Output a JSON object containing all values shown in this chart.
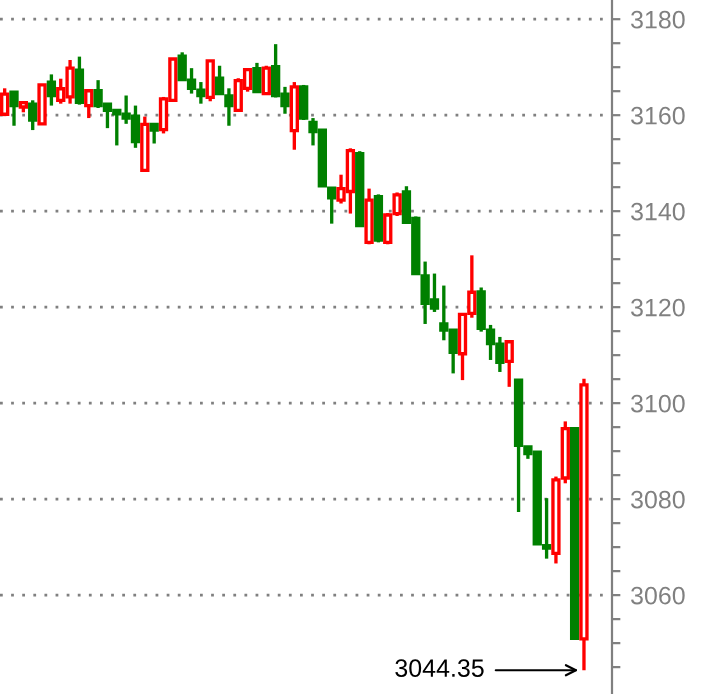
{
  "chart_data": {
    "type": "candlestick",
    "categories": [
      null,
      null,
      null,
      null,
      null,
      null,
      null,
      null,
      null,
      null,
      null,
      null,
      null,
      null,
      null,
      null,
      null,
      null,
      null,
      null,
      null,
      null,
      null,
      null,
      null,
      null,
      null,
      null,
      null,
      null,
      null,
      null,
      null,
      null,
      null,
      null,
      null,
      null,
      null,
      null,
      null,
      null,
      null,
      null,
      null,
      null,
      null,
      null,
      null,
      null,
      null,
      null,
      null,
      null,
      null,
      null,
      null,
      null,
      null,
      null,
      null,
      null,
      null
    ],
    "ohlc": [
      [
        3160.2,
        3165.6,
        3159.8,
        3164.4
      ],
      [
        3164.8,
        3164.8,
        3157.8,
        3162.0
      ],
      [
        3161.7,
        3162.6,
        3160.6,
        3162.6
      ],
      [
        3162.3,
        3163.1,
        3156.9,
        3159.0
      ],
      [
        3158.2,
        3166.3,
        3158.2,
        3166.3
      ],
      [
        3166.9,
        3168.5,
        3162.0,
        3164.1
      ],
      [
        3163.1,
        3167.6,
        3162.4,
        3165.5
      ],
      [
        3163.8,
        3171.5,
        3162.4,
        3169.8
      ],
      [
        3169.4,
        3172.2,
        3162.2,
        3162.7
      ],
      [
        3162.0,
        3165.1,
        3159.4,
        3165.1
      ],
      [
        3165.1,
        3167.3,
        3161.5,
        3162.0
      ],
      [
        3162.3,
        3162.3,
        3157.3,
        3161.0
      ],
      [
        3161.0,
        3161.0,
        3153.7,
        3160.3
      ],
      [
        3160.2,
        3164.1,
        3158.2,
        3159.4
      ],
      [
        3159.8,
        3162.0,
        3153.2,
        3154.5
      ],
      [
        3148.5,
        3159.7,
        3148.2,
        3158.1
      ],
      [
        3158.1,
        3158.1,
        3154.1,
        3156.9
      ],
      [
        3157.0,
        3163.8,
        3156.2,
        3163.4
      ],
      [
        3163.1,
        3171.7,
        3162.8,
        3171.7
      ],
      [
        3172.3,
        3173.1,
        3167.4,
        3167.4
      ],
      [
        3167.3,
        3169.8,
        3164.5,
        3165.6
      ],
      [
        3165.2,
        3166.9,
        3162.4,
        3164.1
      ],
      [
        3163.7,
        3171.5,
        3162.9,
        3171.3
      ],
      [
        3167.7,
        3170.3,
        3164.2,
        3164.5
      ],
      [
        3164.0,
        3165.6,
        3157.8,
        3162.0
      ],
      [
        3161.0,
        3167.7,
        3160.8,
        3167.2
      ],
      [
        3165.6,
        3169.8,
        3164.9,
        3169.5
      ],
      [
        3169.7,
        3170.9,
        3164.9,
        3164.9
      ],
      [
        3164.5,
        3170.3,
        3164.2,
        3169.8
      ],
      [
        3170.1,
        3174.8,
        3163.7,
        3164.1
      ],
      [
        3164.4,
        3165.9,
        3160.3,
        3162.0
      ],
      [
        3156.8,
        3166.9,
        3152.8,
        3165.9
      ],
      [
        3165.9,
        3166.3,
        3159.0,
        3159.4
      ],
      [
        3158.5,
        3159.4,
        3153.7,
        3156.6
      ],
      [
        3156.9,
        3156.9,
        3145.3,
        3145.3
      ],
      [
        3144.8,
        3144.8,
        3137.4,
        3142.8
      ],
      [
        3142.3,
        3147.6,
        3141.6,
        3144.7
      ],
      [
        3144.1,
        3153.1,
        3139.5,
        3152.6
      ],
      [
        3152.0,
        3152.5,
        3137.0,
        3137.0
      ],
      [
        3133.5,
        3144.7,
        3133.1,
        3142.3
      ],
      [
        3143.0,
        3143.5,
        3133.5,
        3134.0
      ],
      [
        3133.5,
        3139.6,
        3133.1,
        3139.2
      ],
      [
        3139.5,
        3143.9,
        3139.0,
        3143.4
      ],
      [
        3144.0,
        3145.2,
        3137.7,
        3137.7
      ],
      [
        3138.5,
        3138.9,
        3127.0,
        3127.0
      ],
      [
        3126.5,
        3129.5,
        3116.5,
        3120.8
      ],
      [
        3121.5,
        3127.0,
        3119.0,
        3119.8
      ],
      [
        3116.5,
        3124.5,
        3113.1,
        3115.2
      ],
      [
        3115.2,
        3115.2,
        3106.2,
        3110.6
      ],
      [
        3110.3,
        3118.5,
        3104.8,
        3118.5
      ],
      [
        3118.7,
        3130.8,
        3117.8,
        3123.1
      ],
      [
        3123.2,
        3124.1,
        3114.9,
        3115.6
      ],
      [
        3115.2,
        3116.3,
        3109.0,
        3112.4
      ],
      [
        3112.3,
        3113.8,
        3106.5,
        3108.5
      ],
      [
        3108.7,
        3113.1,
        3103.4,
        3112.8
      ],
      [
        3104.8,
        3104.8,
        3077.3,
        3091.2
      ],
      [
        3090.9,
        3090.9,
        3088.4,
        3089.5
      ],
      [
        3089.8,
        3089.8,
        3070.7,
        3070.7
      ],
      [
        3070.3,
        3080.2,
        3067.6,
        3069.8
      ],
      [
        3068.7,
        3084.7,
        3066.6,
        3084.0
      ],
      [
        3084.4,
        3096.2,
        3083.3,
        3094.7
      ],
      [
        3094.7,
        3094.7,
        3051.0,
        3051.0
      ],
      [
        3050.9,
        3105.1,
        3044.35,
        3103.8
      ]
    ],
    "colors": [
      "#ff0000",
      "#008000",
      "#ff0000",
      "#008000",
      "#ff0000",
      "#008000",
      "#ff0000",
      "#ff0000",
      "#008000",
      "#ff0000",
      "#008000",
      "#008000",
      "#008000",
      "#008000",
      "#008000",
      "#ff0000",
      "#008000",
      "#ff0000",
      "#ff0000",
      "#008000",
      "#008000",
      "#008000",
      "#ff0000",
      "#008000",
      "#008000",
      "#ff0000",
      "#ff0000",
      "#008000",
      "#ff0000",
      "#008000",
      "#008000",
      "#ff0000",
      "#008000",
      "#008000",
      "#008000",
      "#008000",
      "#ff0000",
      "#ff0000",
      "#008000",
      "#ff0000",
      "#008000",
      "#ff0000",
      "#ff0000",
      "#008000",
      "#008000",
      "#008000",
      "#008000",
      "#008000",
      "#008000",
      "#ff0000",
      "#ff0000",
      "#008000",
      "#008000",
      "#008000",
      "#ff0000",
      "#008000",
      "#008000",
      "#008000",
      "#008000",
      "#ff0000",
      "#ff0000",
      "#008000",
      "#ff0000"
    ],
    "ylim": [
      3039.4,
      3184
    ],
    "yticks": [
      3060,
      3080,
      3100,
      3120,
      3140,
      3160,
      3180,
      {
        "value": 3045,
        "label": null
      },
      {
        "value": 3050,
        "label": null
      },
      {
        "value": 3055,
        "label": null
      },
      {
        "value": 3065,
        "label": null
      },
      {
        "value": 3070,
        "label": null
      },
      {
        "value": 3075,
        "label": null
      },
      {
        "value": 3085,
        "label": null
      },
      {
        "value": 3090,
        "label": null
      },
      {
        "value": 3095,
        "label": null
      },
      {
        "value": 3105,
        "label": null
      },
      {
        "value": 3110,
        "label": null
      },
      {
        "value": 3115,
        "label": null
      },
      {
        "value": 3125,
        "label": null
      },
      {
        "value": 3130,
        "label": null
      },
      {
        "value": 3135,
        "label": null
      },
      {
        "value": 3145,
        "label": null
      },
      {
        "value": 3150,
        "label": null
      },
      {
        "value": 3155,
        "label": null
      },
      {
        "value": 3165,
        "label": null
      },
      {
        "value": 3170,
        "label": null
      },
      {
        "value": 3175,
        "label": null
      }
    ],
    "grid": "y",
    "tick_labels": "y",
    "annotations": [
      "3044.35"
    ]
  }
}
